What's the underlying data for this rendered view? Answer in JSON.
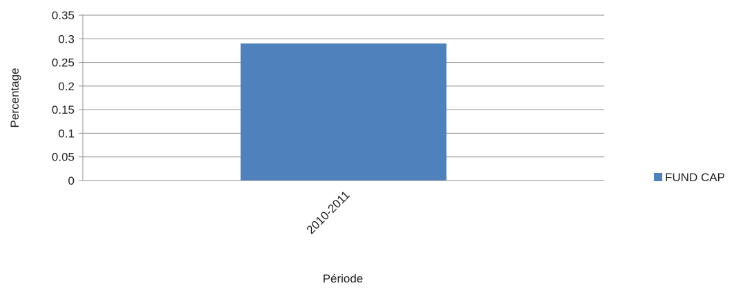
{
  "chart_data": {
    "type": "bar",
    "title": "",
    "xlabel": "Période",
    "ylabel": "Percentage",
    "categories": [
      "2010-2011"
    ],
    "series": [
      {
        "name": "FUND CAP",
        "values": [
          0.29
        ],
        "color": "#4f81bd"
      }
    ],
    "ylim": [
      0,
      0.35
    ],
    "yticks": [
      "0",
      "0.05",
      "0.1",
      "0.15",
      "0.2",
      "0.25",
      "0.3",
      "0.35"
    ],
    "grid": true,
    "legend_position": "right"
  }
}
